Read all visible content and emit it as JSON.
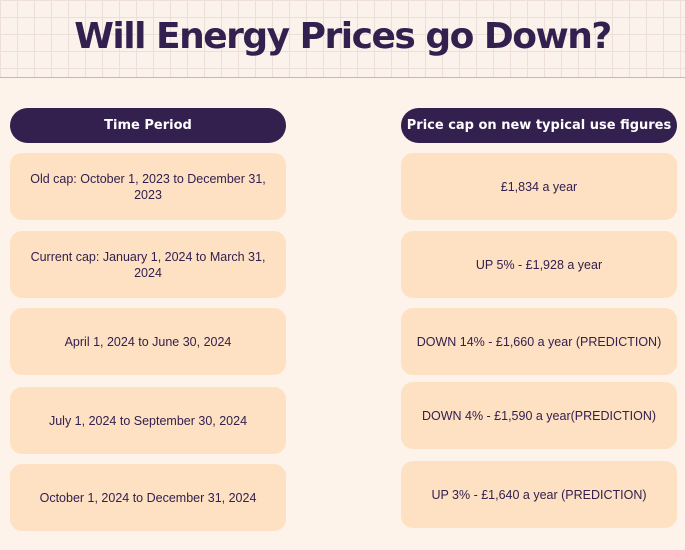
{
  "title": "Will Energy Prices go Down?",
  "table": {
    "headers": {
      "period": "Time Period",
      "price": "Price cap on new typical use figures"
    },
    "rows": [
      {
        "period": "Old cap: October 1, 2023 to December 31, 2023",
        "price": "£1,834 a year"
      },
      {
        "period": "Current cap: January 1, 2024 to March 31, 2024",
        "price": "UP 5% - £1,928 a year"
      },
      {
        "period": "April 1, 2024 to June 30, 2024",
        "price": "DOWN 14% - £1,660 a year (PREDICTION)"
      },
      {
        "period": "July 1, 2024 to September 30, 2024",
        "price": "DOWN 4% - £1,590 a year(PREDICTION)"
      },
      {
        "period": "October 1, 2024 to December 31, 2024",
        "price": "UP 3% - £1,640 a year (PREDICTION)"
      }
    ]
  },
  "colors": {
    "dark_purple": "#33204f",
    "cell_peach": "#fde1c2",
    "background": "#fdf3ea"
  }
}
